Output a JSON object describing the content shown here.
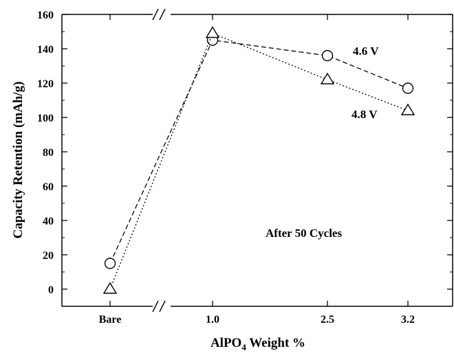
{
  "chart_data": {
    "type": "line",
    "categories": [
      "Bare",
      "1.0",
      "2.5",
      "3.2"
    ],
    "series": [
      {
        "name": "4.6 V",
        "marker": "circle",
        "line": "dashed",
        "values": [
          15,
          145,
          136,
          117
        ]
      },
      {
        "name": "4.8 V",
        "marker": "triangle",
        "line": "dotted",
        "values": [
          0,
          149,
          122,
          104
        ]
      }
    ],
    "yticks": [
      0,
      20,
      40,
      60,
      80,
      100,
      120,
      140,
      160
    ],
    "ylim": [
      -10,
      160
    ],
    "ylabel": "Capacity Retention (mAh/g)",
    "xlabel_main": "AlPO",
    "xlabel_sub": "4",
    "xlabel_rest": " Weight %",
    "annotation": "After 50 Cycles",
    "axis_break": true,
    "grid": false,
    "color": "#000000"
  }
}
